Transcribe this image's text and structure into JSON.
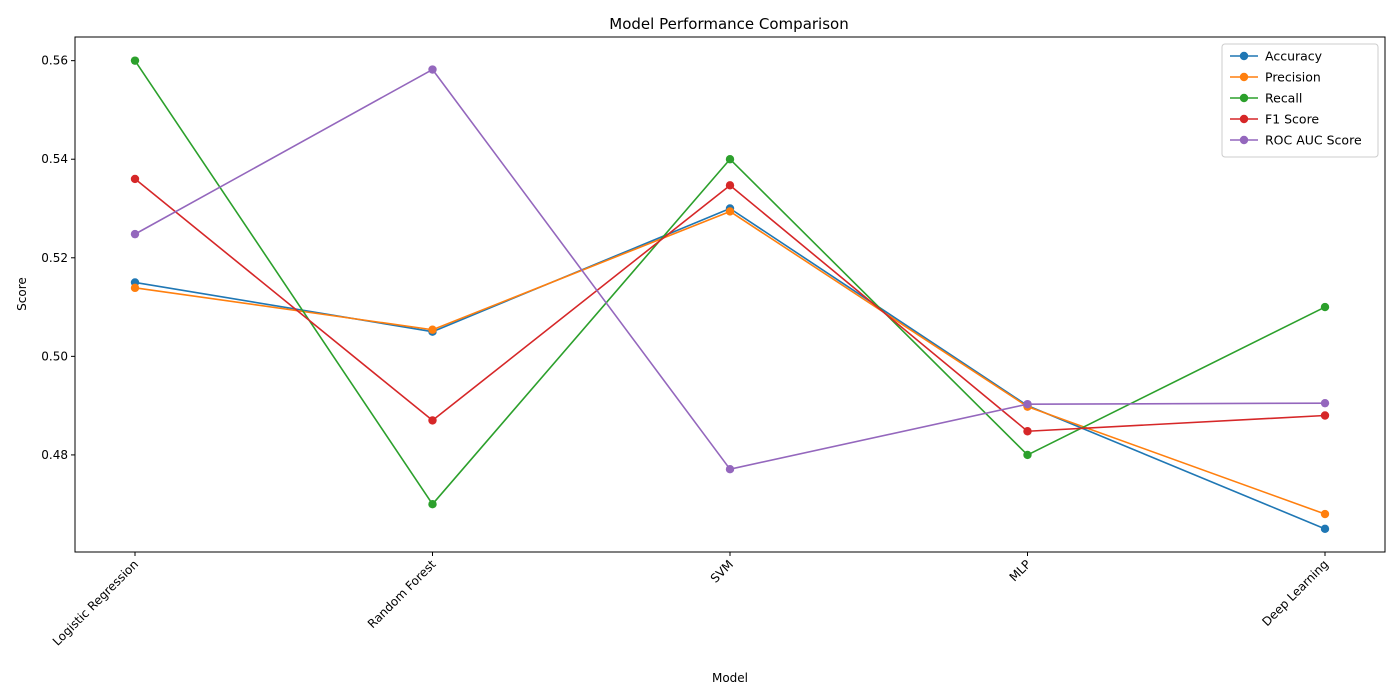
{
  "chart_data": {
    "type": "line",
    "title": "Model Performance Comparison",
    "xlabel": "Model",
    "ylabel": "Score",
    "categories": [
      "Logistic Regression",
      "Random Forest",
      "SVM",
      "MLP",
      "Deep Learning"
    ],
    "ylim": [
      0.4603,
      0.5648
    ],
    "yticks": [
      0.48,
      0.5,
      0.52,
      0.54,
      0.56
    ],
    "ytick_labels": [
      "0.48",
      "0.50",
      "0.52",
      "0.54",
      "0.56"
    ],
    "grid": false,
    "legend_position": "top-right",
    "marker": "circle",
    "series": [
      {
        "name": "Accuracy",
        "color": "#1f77b4",
        "values": [
          0.515,
          0.505,
          0.53,
          0.49,
          0.465
        ]
      },
      {
        "name": "Precision",
        "color": "#ff7f0e",
        "values": [
          0.5139,
          0.5054,
          0.5294,
          0.4898,
          0.468
        ]
      },
      {
        "name": "Recall",
        "color": "#2ca02c",
        "values": [
          0.56,
          0.47,
          0.54,
          0.48,
          0.51
        ]
      },
      {
        "name": "F1 Score",
        "color": "#d62728",
        "values": [
          0.536,
          0.487,
          0.5347,
          0.4848,
          0.488
        ]
      },
      {
        "name": "ROC AUC Score",
        "color": "#9467bd",
        "values": [
          0.5248,
          0.5582,
          0.4771,
          0.4903,
          0.4905
        ]
      }
    ]
  }
}
